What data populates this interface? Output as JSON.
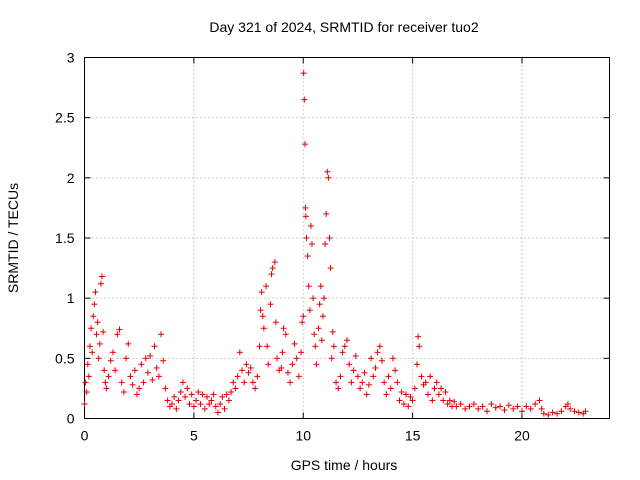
{
  "chart_data": {
    "type": "scatter",
    "title": "Day 321 of 2024, SRMTID for receiver tuo2",
    "xlabel": "GPS time / hours",
    "ylabel": "SRMTID / TECUs",
    "xlim": [
      0,
      24
    ],
    "ylim": [
      0,
      3
    ],
    "xticks": [
      0,
      5,
      10,
      15,
      20
    ],
    "yticks": [
      0,
      0.5,
      1,
      1.5,
      2,
      2.5,
      3
    ],
    "xtick_labels": [
      "0",
      "5",
      "10",
      "15",
      "20"
    ],
    "ytick_labels": [
      "0",
      "0.5",
      "1",
      "1.5",
      "2",
      "2.5",
      "3"
    ],
    "grid": true,
    "marker": "+",
    "color": "#e00000",
    "series": [
      {
        "name": "tuo2",
        "points": [
          [
            0.0,
            0.12
          ],
          [
            0.05,
            0.3
          ],
          [
            0.1,
            0.22
          ],
          [
            0.15,
            0.45
          ],
          [
            0.2,
            0.35
          ],
          [
            0.25,
            0.6
          ],
          [
            0.3,
            0.75
          ],
          [
            0.35,
            0.55
          ],
          [
            0.4,
            0.85
          ],
          [
            0.45,
            0.95
          ],
          [
            0.5,
            1.05
          ],
          [
            0.55,
            0.7
          ],
          [
            0.6,
            0.8
          ],
          [
            0.65,
            0.5
          ],
          [
            0.7,
            0.62
          ],
          [
            0.75,
            1.12
          ],
          [
            0.8,
            1.18
          ],
          [
            0.85,
            0.72
          ],
          [
            0.9,
            0.4
          ],
          [
            0.95,
            0.3
          ],
          [
            1.0,
            0.25
          ],
          [
            1.1,
            0.35
          ],
          [
            1.2,
            0.48
          ],
          [
            1.3,
            0.55
          ],
          [
            1.4,
            0.4
          ],
          [
            1.5,
            0.7
          ],
          [
            1.6,
            0.74
          ],
          [
            1.7,
            0.3
          ],
          [
            1.8,
            0.22
          ],
          [
            1.9,
            0.5
          ],
          [
            2.0,
            0.62
          ],
          [
            2.1,
            0.35
          ],
          [
            2.2,
            0.28
          ],
          [
            2.3,
            0.4
          ],
          [
            2.4,
            0.2
          ],
          [
            2.5,
            0.25
          ],
          [
            2.6,
            0.45
          ],
          [
            2.7,
            0.3
          ],
          [
            2.8,
            0.5
          ],
          [
            2.9,
            0.38
          ],
          [
            3.0,
            0.52
          ],
          [
            3.1,
            0.32
          ],
          [
            3.2,
            0.6
          ],
          [
            3.3,
            0.42
          ],
          [
            3.4,
            0.35
          ],
          [
            3.5,
            0.7
          ],
          [
            3.6,
            0.48
          ],
          [
            3.7,
            0.25
          ],
          [
            3.8,
            0.15
          ],
          [
            3.9,
            0.1
          ],
          [
            4.0,
            0.12
          ],
          [
            4.1,
            0.18
          ],
          [
            4.2,
            0.08
          ],
          [
            4.3,
            0.15
          ],
          [
            4.4,
            0.22
          ],
          [
            4.5,
            0.3
          ],
          [
            4.6,
            0.18
          ],
          [
            4.7,
            0.25
          ],
          [
            4.8,
            0.12
          ],
          [
            4.9,
            0.2
          ],
          [
            5.0,
            0.1
          ],
          [
            5.1,
            0.15
          ],
          [
            5.2,
            0.22
          ],
          [
            5.3,
            0.12
          ],
          [
            5.4,
            0.2
          ],
          [
            5.5,
            0.08
          ],
          [
            5.6,
            0.18
          ],
          [
            5.7,
            0.12
          ],
          [
            5.8,
            0.15
          ],
          [
            5.9,
            0.2
          ],
          [
            6.0,
            0.1
          ],
          [
            6.1,
            0.05
          ],
          [
            6.2,
            0.12
          ],
          [
            6.3,
            0.18
          ],
          [
            6.4,
            0.08
          ],
          [
            6.5,
            0.2
          ],
          [
            6.6,
            0.15
          ],
          [
            6.7,
            0.22
          ],
          [
            6.8,
            0.3
          ],
          [
            6.9,
            0.25
          ],
          [
            7.0,
            0.35
          ],
          [
            7.1,
            0.55
          ],
          [
            7.2,
            0.4
          ],
          [
            7.3,
            0.3
          ],
          [
            7.4,
            0.45
          ],
          [
            7.5,
            0.38
          ],
          [
            7.6,
            0.42
          ],
          [
            7.7,
            0.3
          ],
          [
            7.8,
            0.25
          ],
          [
            7.9,
            0.35
          ],
          [
            8.0,
            0.6
          ],
          [
            8.05,
            0.9
          ],
          [
            8.1,
            1.05
          ],
          [
            8.15,
            0.85
          ],
          [
            8.2,
            0.75
          ],
          [
            8.3,
            1.1
          ],
          [
            8.35,
            0.6
          ],
          [
            8.4,
            0.45
          ],
          [
            8.5,
            0.95
          ],
          [
            8.55,
            1.2
          ],
          [
            8.6,
            1.25
          ],
          [
            8.7,
            1.3
          ],
          [
            8.75,
            0.8
          ],
          [
            8.8,
            0.5
          ],
          [
            8.9,
            0.4
          ],
          [
            9.0,
            0.42
          ],
          [
            9.05,
            0.55
          ],
          [
            9.1,
            0.75
          ],
          [
            9.2,
            0.7
          ],
          [
            9.3,
            0.38
          ],
          [
            9.4,
            0.3
          ],
          [
            9.5,
            0.45
          ],
          [
            9.6,
            0.62
          ],
          [
            9.7,
            0.5
          ],
          [
            9.8,
            0.35
          ],
          [
            9.9,
            0.55
          ],
          [
            9.95,
            0.8
          ],
          [
            10.0,
            0.85
          ],
          [
            10.02,
            2.87
          ],
          [
            10.05,
            2.65
          ],
          [
            10.08,
            2.28
          ],
          [
            10.1,
            1.75
          ],
          [
            10.12,
            1.68
          ],
          [
            10.15,
            1.5
          ],
          [
            10.2,
            1.35
          ],
          [
            10.25,
            1.1
          ],
          [
            10.3,
            0.9
          ],
          [
            10.35,
            1.6
          ],
          [
            10.4,
            1.45
          ],
          [
            10.45,
            1.0
          ],
          [
            10.5,
            0.7
          ],
          [
            10.55,
            0.6
          ],
          [
            10.6,
            0.45
          ],
          [
            10.7,
            0.75
          ],
          [
            10.75,
            0.95
          ],
          [
            10.8,
            1.1
          ],
          [
            10.85,
            0.65
          ],
          [
            10.9,
            0.85
          ],
          [
            10.95,
            1.0
          ],
          [
            11.0,
            1.45
          ],
          [
            11.05,
            1.7
          ],
          [
            11.1,
            2.05
          ],
          [
            11.15,
            2.0
          ],
          [
            11.2,
            1.5
          ],
          [
            11.25,
            1.25
          ],
          [
            11.3,
            0.5
          ],
          [
            11.35,
            0.72
          ],
          [
            11.4,
            0.6
          ],
          [
            11.5,
            0.3
          ],
          [
            11.6,
            0.25
          ],
          [
            11.7,
            0.35
          ],
          [
            11.8,
            0.55
          ],
          [
            11.9,
            0.6
          ],
          [
            12.0,
            0.65
          ],
          [
            12.1,
            0.45
          ],
          [
            12.2,
            0.3
          ],
          [
            12.3,
            0.4
          ],
          [
            12.4,
            0.52
          ],
          [
            12.5,
            0.35
          ],
          [
            12.6,
            0.25
          ],
          [
            12.7,
            0.3
          ],
          [
            12.8,
            0.38
          ],
          [
            12.9,
            0.2
          ],
          [
            13.0,
            0.28
          ],
          [
            13.1,
            0.5
          ],
          [
            13.2,
            0.35
          ],
          [
            13.3,
            0.42
          ],
          [
            13.4,
            0.55
          ],
          [
            13.5,
            0.6
          ],
          [
            13.6,
            0.48
          ],
          [
            13.7,
            0.3
          ],
          [
            13.8,
            0.2
          ],
          [
            13.9,
            0.35
          ],
          [
            14.0,
            0.25
          ],
          [
            14.1,
            0.5
          ],
          [
            14.2,
            0.4
          ],
          [
            14.3,
            0.3
          ],
          [
            14.4,
            0.15
          ],
          [
            14.5,
            0.22
          ],
          [
            14.6,
            0.12
          ],
          [
            14.7,
            0.2
          ],
          [
            14.8,
            0.1
          ],
          [
            14.9,
            0.18
          ],
          [
            15.0,
            0.15
          ],
          [
            15.1,
            0.25
          ],
          [
            15.2,
            0.45
          ],
          [
            15.25,
            0.68
          ],
          [
            15.3,
            0.6
          ],
          [
            15.4,
            0.35
          ],
          [
            15.5,
            0.28
          ],
          [
            15.6,
            0.3
          ],
          [
            15.7,
            0.2
          ],
          [
            15.8,
            0.35
          ],
          [
            15.9,
            0.15
          ],
          [
            16.0,
            0.25
          ],
          [
            16.1,
            0.3
          ],
          [
            16.2,
            0.2
          ],
          [
            16.3,
            0.25
          ],
          [
            16.4,
            0.15
          ],
          [
            16.5,
            0.22
          ],
          [
            16.6,
            0.12
          ],
          [
            16.7,
            0.15
          ],
          [
            16.8,
            0.1
          ],
          [
            16.9,
            0.14
          ],
          [
            17.0,
            0.1
          ],
          [
            17.2,
            0.12
          ],
          [
            17.4,
            0.08
          ],
          [
            17.6,
            0.1
          ],
          [
            17.8,
            0.12
          ],
          [
            18.0,
            0.08
          ],
          [
            18.2,
            0.1
          ],
          [
            18.4,
            0.06
          ],
          [
            18.6,
            0.12
          ],
          [
            18.8,
            0.09
          ],
          [
            19.0,
            0.1
          ],
          [
            19.2,
            0.07
          ],
          [
            19.4,
            0.11
          ],
          [
            19.6,
            0.08
          ],
          [
            19.8,
            0.1
          ],
          [
            20.0,
            0.06
          ],
          [
            20.2,
            0.1
          ],
          [
            20.4,
            0.08
          ],
          [
            20.6,
            0.12
          ],
          [
            20.8,
            0.15
          ],
          [
            20.9,
            0.08
          ],
          [
            21.0,
            0.04
          ],
          [
            21.2,
            0.03
          ],
          [
            21.4,
            0.05
          ],
          [
            21.6,
            0.04
          ],
          [
            21.8,
            0.06
          ],
          [
            22.0,
            0.1
          ],
          [
            22.1,
            0.12
          ],
          [
            22.2,
            0.08
          ],
          [
            22.4,
            0.06
          ],
          [
            22.6,
            0.05
          ],
          [
            22.8,
            0.04
          ],
          [
            22.9,
            0.06
          ]
        ]
      }
    ]
  }
}
